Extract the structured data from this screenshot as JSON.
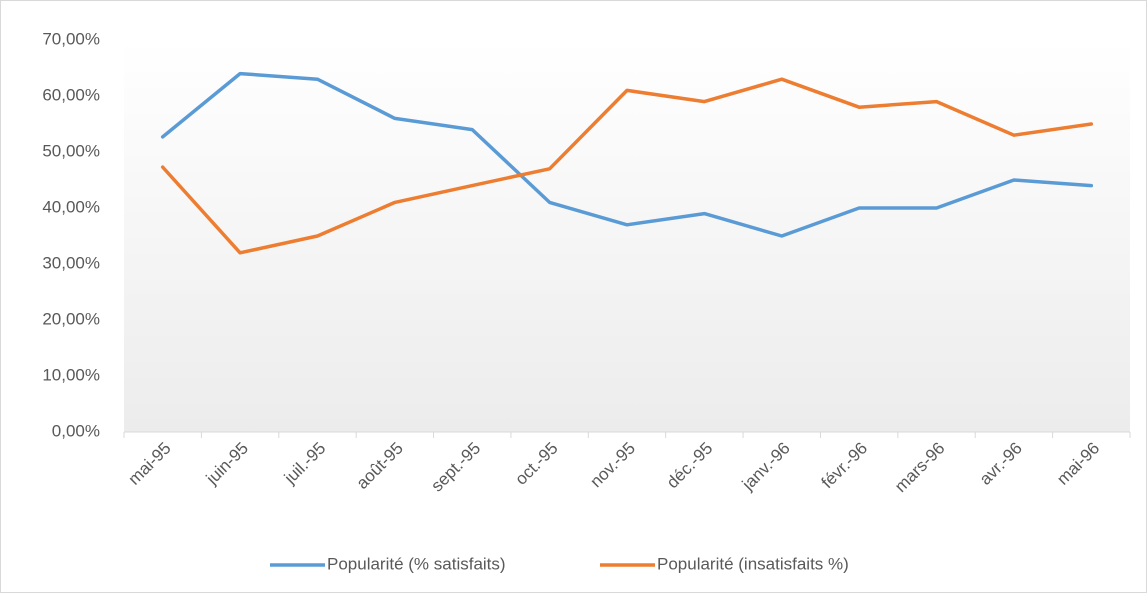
{
  "chart_data": {
    "type": "line",
    "categories": [
      "mai-95",
      "juin-95",
      "juil.-95",
      "août-95",
      "sept.-95",
      "oct.-95",
      "nov.-95",
      "déc.-95",
      "janv.-96",
      "févr.-96",
      "mars-96",
      "avr.-96",
      "mai-96"
    ],
    "series": [
      {
        "name": "Popularité (% satisfaits)",
        "color": "#5b9bd5",
        "values": [
          52.7,
          64,
          63,
          56,
          54,
          41,
          37,
          39,
          35,
          40,
          40,
          45,
          44
        ]
      },
      {
        "name": "Popularité (insatisfaits %)",
        "color": "#ed7d31",
        "values": [
          47.3,
          32,
          35,
          41,
          44,
          47,
          61,
          59,
          63,
          58,
          59,
          53,
          55
        ]
      }
    ],
    "ylim": [
      0,
      70
    ],
    "yticks": [
      {
        "value": 0,
        "label": "0,00%"
      },
      {
        "value": 10,
        "label": "10,00%"
      },
      {
        "value": 20,
        "label": "20,00%"
      },
      {
        "value": 30,
        "label": "30,00%"
      },
      {
        "value": 40,
        "label": "40,00%"
      },
      {
        "value": 50,
        "label": "50,00%"
      },
      {
        "value": 60,
        "label": "60,00%"
      },
      {
        "value": 70,
        "label": "70,00%"
      }
    ],
    "grid": false,
    "legend": "bottom"
  }
}
